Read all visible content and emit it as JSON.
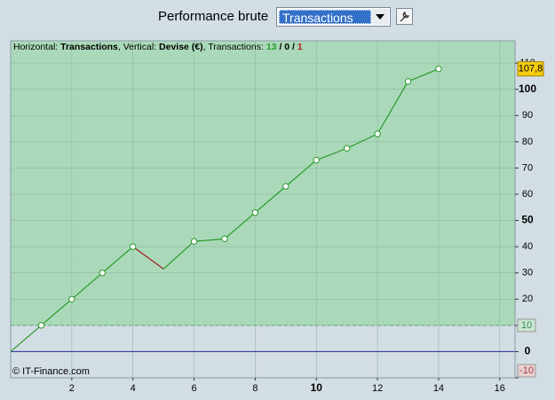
{
  "toolbar": {
    "label": "Performance brute",
    "selected": "Transactions"
  },
  "chart_data": {
    "type": "line",
    "info": [
      "Horizontal:",
      "Transactions",
      ", Vertical:",
      "Devise (€)",
      ", Transactions:",
      "13",
      "/",
      "0",
      "/",
      "1"
    ],
    "x": [
      0,
      1,
      2,
      3,
      4,
      5,
      6,
      7,
      8,
      9,
      10,
      11,
      12,
      13,
      14
    ],
    "values": [
      0,
      10,
      20,
      30,
      40,
      31.5,
      42,
      43,
      53,
      63,
      73,
      77.5,
      83,
      103,
      107.8
    ],
    "value_labels": [
      null,
      null,
      null,
      null,
      null,
      null,
      null,
      null,
      null,
      null,
      null,
      null,
      null,
      null,
      "107,8"
    ],
    "color": "#2a9a2a",
    "loss_color": "#a02020",
    "xlim": [
      0,
      16.5
    ],
    "xticks": [
      2,
      4,
      6,
      8,
      10,
      12,
      14,
      16
    ],
    "ylim": [
      -10,
      118.5
    ],
    "yticks": [
      -10,
      0,
      10,
      20,
      30,
      40,
      50,
      60,
      70,
      80,
      90,
      100,
      110
    ],
    "band_threshold": 10,
    "band_color": "#aad9ba",
    "zero_line_color": "#2a2a9a",
    "grid": true,
    "credit": "© IT-Finance.com"
  }
}
